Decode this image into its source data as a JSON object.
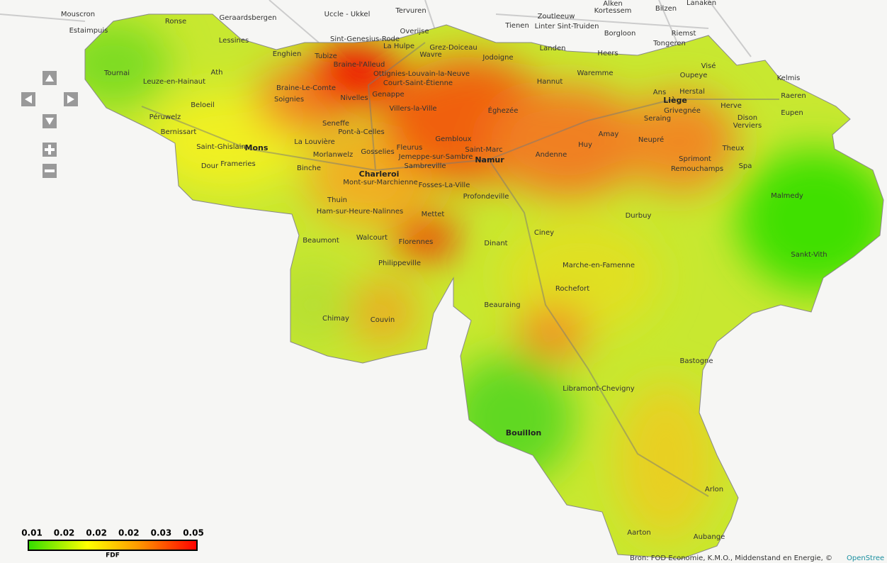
{
  "places": [
    "Mouscron",
    "Estaimpuis",
    "Ronse",
    "Geraardsbergen",
    "Uccle - Ukkel",
    "Tervuren",
    "Sint-Genesius-Rode",
    "Overijse",
    "Tienen",
    "Zoutleeuw",
    "Linter Sint-Truiden",
    "Alken",
    "Kortessem",
    "Bilzen",
    "Lanaken",
    "Borgloon",
    "Riemst",
    "Tongeren",
    "Heers",
    "Landen",
    "Lessines",
    "Enghien",
    "Tubize",
    "Braine-l'Alleud",
    "La Hulpe",
    "Wavre",
    "Grez-Doiceau",
    "Jodoigne",
    "Ottignies-Louvain-la-Neuve",
    "Court-Saint-Étienne",
    "Genappe",
    "Nivelles",
    "Braine-Le-Comte",
    "Soignies",
    "Ath",
    "Tournai",
    "Leuze-en-Hainaut",
    "Beloeil",
    "Péruwelz",
    "Bernissart",
    "Saint-Ghislain",
    "Mons",
    "Frameries",
    "Dour",
    "Binche",
    "La Louvière",
    "Morlanwelz",
    "Seneffe",
    "Pont-à-Celles",
    "Gosselies",
    "Fleurus",
    "Jemeppe-sur-Sambre",
    "Sambreville",
    "Charleroi",
    "Mont-sur-Marchienne",
    "Thuin",
    "Ham-sur-Heure-Nalinnes",
    "Beaumont",
    "Walcourt",
    "Mettet",
    "Florennes",
    "Philippeville",
    "Chimay",
    "Couvin",
    "Villers-la-Ville",
    "Gembloux",
    "Éghezée",
    "Hannut",
    "Saint-Marc",
    "Namur",
    "Fosses-La-Ville",
    "Profondeville",
    "Dinant",
    "Andenne",
    "Huy",
    "Amay",
    "Waremme",
    "Seraing",
    "Neupré",
    "Liège",
    "Ans",
    "Herstal",
    "Oupeye",
    "Visé",
    "Grivegnée",
    "Herve",
    "Dison",
    "Verviers",
    "Eupen",
    "Raeren",
    "Kelmis",
    "Theux",
    "Spa",
    "Sprimont",
    "Remouchamps",
    "Malmedy",
    "Sankt-Vith",
    "Durbuy",
    "Ciney",
    "Marche-en-Famenne",
    "Rochefort",
    "Beauraing",
    "Bastogne",
    "Libramont-Chevigny",
    "Bouillon",
    "Arlon",
    "Aubange",
    "Aarton"
  ],
  "legend": {
    "title": "FDF",
    "ticks": [
      "0.01",
      "0.02",
      "0.02",
      "0.02",
      "0.03",
      "0.05"
    ]
  },
  "attribution": {
    "text": "Bron: FOD Economie, K.M.O., Middenstand en Energie, ©",
    "link": "OpenStree"
  }
}
